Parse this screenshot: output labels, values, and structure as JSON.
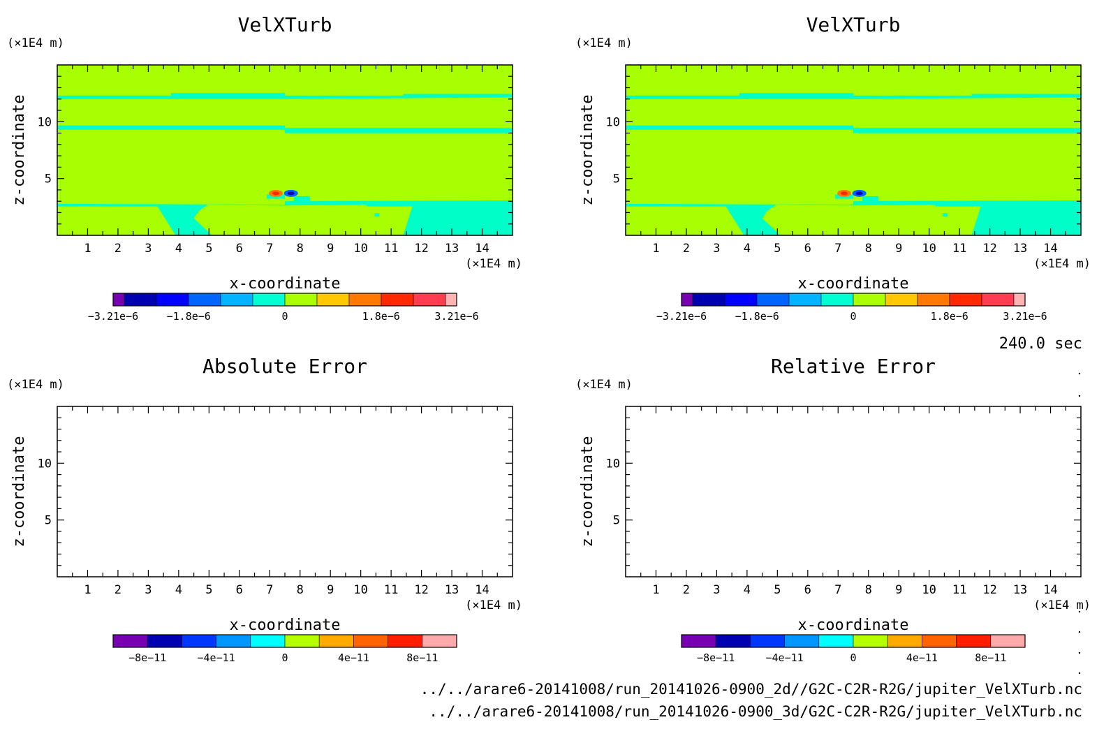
{
  "chart_data": [
    {
      "type": "heatmap",
      "title": "VelXTurb",
      "xlabel": "x-coordinate",
      "ylabel": "z-coordinate",
      "x_unit": "(×1E4 m)",
      "y_unit": "(×1E4 m)",
      "xlim": [
        0,
        15
      ],
      "ylim": [
        0,
        15
      ],
      "xticks": [
        "1",
        "2",
        "3",
        "4",
        "5",
        "6",
        "7",
        "8",
        "9",
        "10",
        "11",
        "12",
        "13",
        "14"
      ],
      "yticks": [
        "5",
        "10"
      ],
      "background_level": "0 to 0.33e-6 (yellow-green)",
      "bands": [
        {
          "z": 12.0,
          "level": "cyan-green"
        },
        {
          "z": 9.3,
          "level": "cyan-green"
        },
        {
          "z": 2.8,
          "level": "cyan-green"
        }
      ],
      "features": [
        {
          "x": 7.2,
          "z": 3.7,
          "level": "max positive (red)"
        },
        {
          "x": 7.7,
          "z": 3.7,
          "level": "max negative (blue)"
        }
      ],
      "colorbar": {
        "levels": 11,
        "labels": [
          "−3.21e−6",
          "−1.8e−6",
          "0",
          "1.8e−6",
          "3.21e−6"
        ]
      }
    },
    {
      "type": "heatmap",
      "title": "VelXTurb",
      "xlabel": "x-coordinate",
      "ylabel": "z-coordinate",
      "x_unit": "(×1E4 m)",
      "y_unit": "(×1E4 m)",
      "xlim": [
        0,
        15
      ],
      "ylim": [
        0,
        15
      ],
      "xticks": [
        "1",
        "2",
        "3",
        "4",
        "5",
        "6",
        "7",
        "8",
        "9",
        "10",
        "11",
        "12",
        "13",
        "14"
      ],
      "yticks": [
        "5",
        "10"
      ],
      "colorbar": {
        "levels": 11,
        "labels": [
          "−3.21e−6",
          "−1.8e−6",
          "0",
          "1.8e−6",
          "3.21e−6"
        ]
      }
    },
    {
      "type": "heatmap",
      "title": "Absolute Error",
      "xlabel": "x-coordinate",
      "ylabel": "z-coordinate",
      "x_unit": "(×1E4 m)",
      "y_unit": "(×1E4 m)",
      "xlim": [
        0,
        15
      ],
      "ylim": [
        0,
        15
      ],
      "xticks": [
        "1",
        "2",
        "3",
        "4",
        "5",
        "6",
        "7",
        "8",
        "9",
        "10",
        "11",
        "12",
        "13",
        "14"
      ],
      "yticks": [
        "5",
        "10"
      ],
      "values": "empty (no contour)",
      "colorbar": {
        "levels": 10,
        "labels": [
          "−8e−11",
          "−4e−11",
          "0",
          "4e−11",
          "8e−11"
        ]
      }
    },
    {
      "type": "heatmap",
      "title": "Relative Error",
      "xlabel": "x-coordinate",
      "ylabel": "z-coordinate",
      "x_unit": "(×1E4 m)",
      "y_unit": "(×1E4 m)",
      "xlim": [
        0,
        15
      ],
      "ylim": [
        0,
        15
      ],
      "xticks": [
        "1",
        "2",
        "3",
        "4",
        "5",
        "6",
        "7",
        "8",
        "9",
        "10",
        "11",
        "12",
        "13",
        "14"
      ],
      "yticks": [
        "5",
        "10"
      ],
      "values": "empty (no contour)",
      "colorbar": {
        "levels": 10,
        "labels": [
          "−8e−11",
          "−4e−11",
          "0",
          "4e−11",
          "8e−11"
        ]
      }
    }
  ],
  "time_label": "240.0 sec",
  "file_paths": [
    "../../arare6-20141008/run_20141026-0900_2d//G2C-C2R-R2G/jupiter_VelXTurb.nc",
    "../../arare6-20141008/run_20141026-0900_3d/G2C-C2R-R2G/jupiter_VelXTurb.nc"
  ],
  "colors": {
    "field_background": "#a8ff00",
    "band": "#00ffc8",
    "colorbar_vel": [
      "#7700b3",
      "#0000b3",
      "#0000ff",
      "#0064ff",
      "#00b4ff",
      "#00ffd2",
      "#aaff00",
      "#ffc800",
      "#ff7800",
      "#ff2800",
      "#ff3c50",
      "#ffb4b4"
    ],
    "colorbar_err": [
      "#7700b3",
      "#0000b3",
      "#0037ff",
      "#0096ff",
      "#00ffff",
      "#b4ff00",
      "#ffaa00",
      "#ff6400",
      "#ff1e00",
      "#ffaaaa"
    ]
  }
}
